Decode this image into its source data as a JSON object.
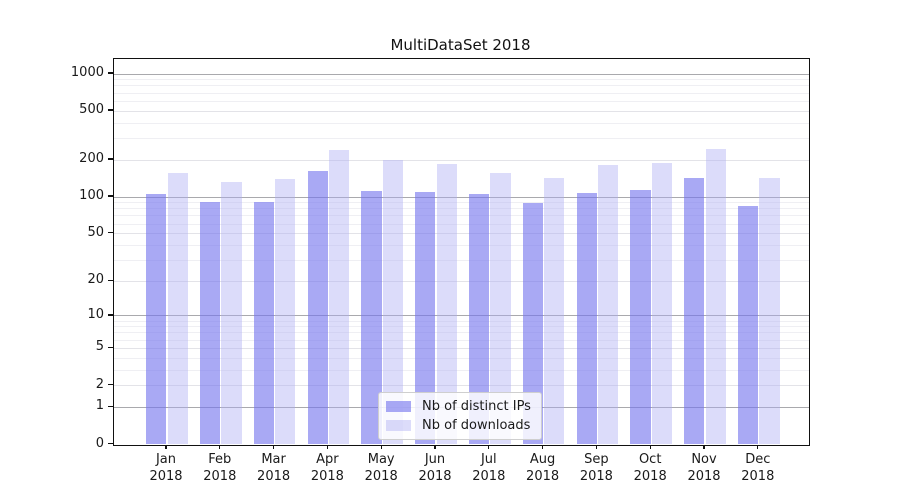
{
  "chart_data": {
    "type": "bar",
    "title": "MultiDataSet 2018",
    "categories": [
      "Jan",
      "Feb",
      "Mar",
      "Apr",
      "May",
      "Jun",
      "Jul",
      "Aug",
      "Sep",
      "Oct",
      "Nov",
      "Dec"
    ],
    "category_year": "2018",
    "series": [
      {
        "name": "Nb of distinct IPs",
        "color": "rgba(116,116,237,0.62)",
        "values": [
          104,
          90,
          91,
          163,
          111,
          108,
          104,
          89,
          107,
          113,
          142,
          83
        ]
      },
      {
        "name": "Nb of downloads",
        "color": "rgba(172,172,243,0.42)",
        "values": [
          156,
          132,
          140,
          240,
          200,
          184,
          155,
          141,
          180,
          188,
          244,
          141
        ]
      }
    ],
    "xlabel": "",
    "ylabel": "",
    "y_axis": {
      "scale": "symlog",
      "ticks": [
        0,
        1,
        2,
        5,
        10,
        20,
        50,
        100,
        200,
        500,
        1000
      ],
      "minor_ticks": [
        3,
        4,
        6,
        7,
        8,
        9,
        30,
        40,
        60,
        70,
        80,
        90,
        300,
        400,
        600,
        700,
        800,
        900
      ],
      "ylim": [
        0,
        1310
      ]
    },
    "grid": true,
    "legend_position": "bottom-center"
  }
}
